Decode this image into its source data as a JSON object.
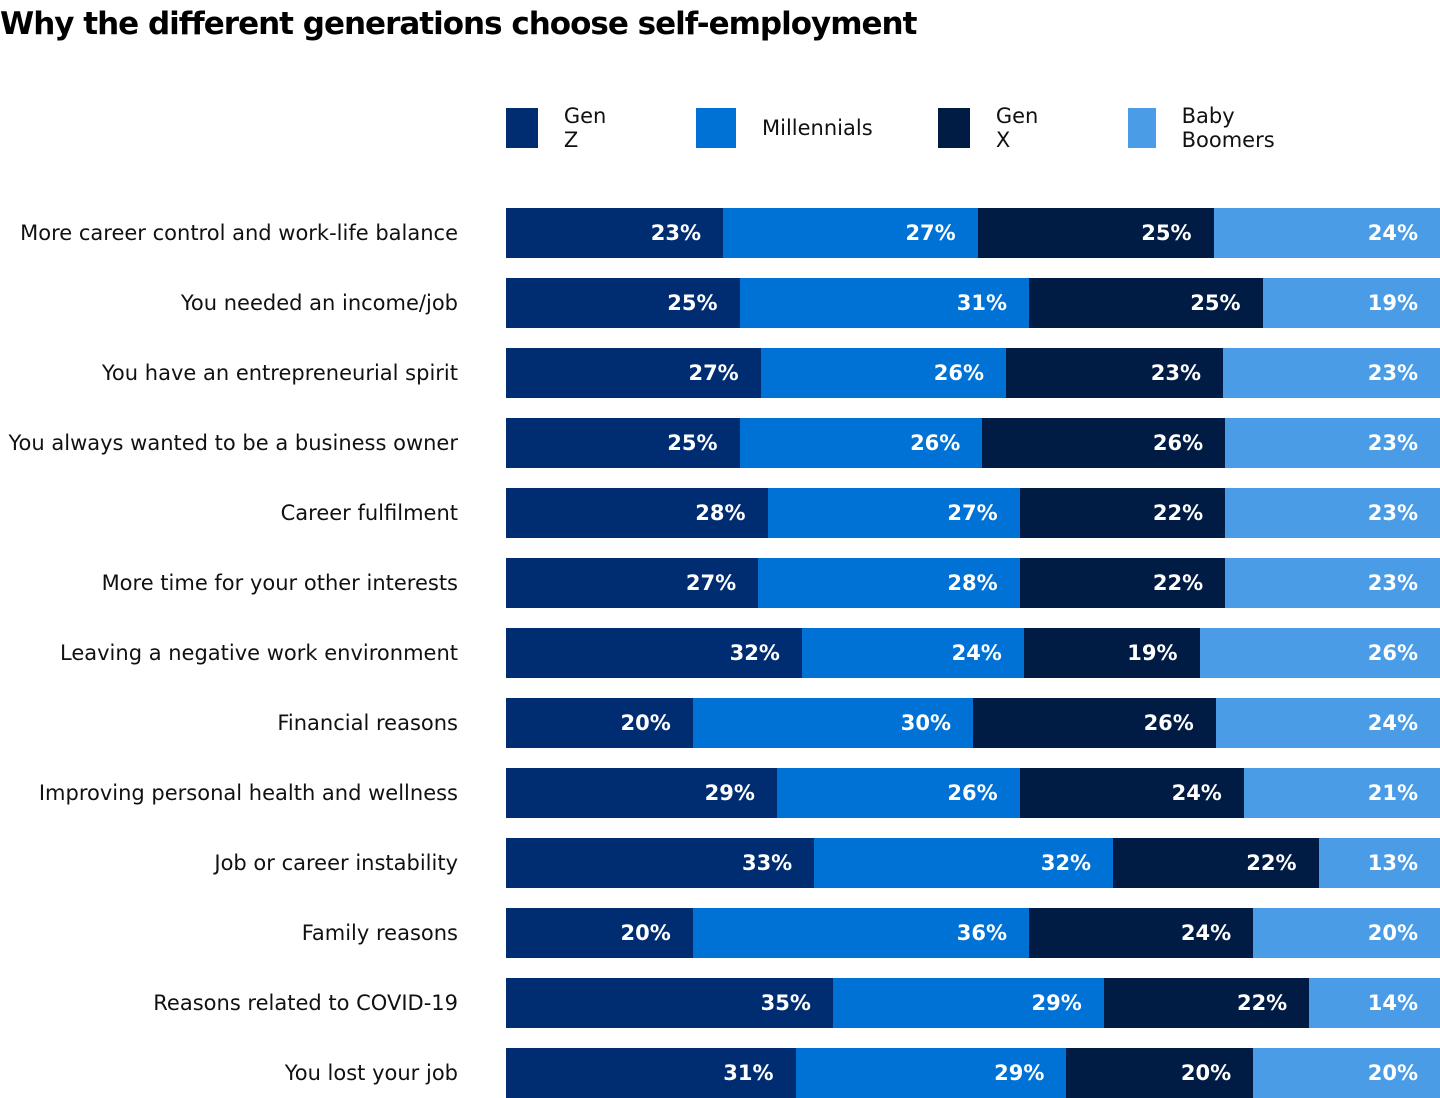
{
  "chart_data": {
    "type": "bar",
    "orientation": "horizontal",
    "stacked": true,
    "title": "Why the different generations choose self-employment",
    "legend_placement": "top",
    "grid": false,
    "categories": [
      "More career control and work-life balance",
      "You needed an income/job",
      "You have an entrepreneurial spirit",
      "You always wanted to be a business owner",
      "Career fulfilment",
      "More time for your other interests",
      "Leaving a negative work environment",
      "Financial reasons",
      "Improving personal health and wellness",
      "Job or career instability",
      "Family reasons",
      "Reasons related to COVID-19",
      "You lost your job"
    ],
    "series": [
      {
        "name": "Gen Z",
        "color": "#002d72",
        "values": [
          23,
          25,
          27,
          25,
          28,
          27,
          32,
          20,
          29,
          33,
          20,
          35,
          31
        ]
      },
      {
        "name": "Millennials",
        "color": "#0072d6",
        "values": [
          27,
          31,
          26,
          26,
          27,
          28,
          24,
          30,
          26,
          32,
          36,
          29,
          29
        ]
      },
      {
        "name": "Gen X",
        "color": "#001b44",
        "values": [
          25,
          25,
          23,
          26,
          22,
          22,
          19,
          26,
          24,
          22,
          24,
          22,
          20
        ]
      },
      {
        "name": "Baby Boomers",
        "color": "#4b9ce6",
        "values": [
          24,
          19,
          23,
          23,
          23,
          23,
          26,
          24,
          21,
          13,
          20,
          14,
          20
        ]
      }
    ],
    "value_suffix": "%"
  }
}
